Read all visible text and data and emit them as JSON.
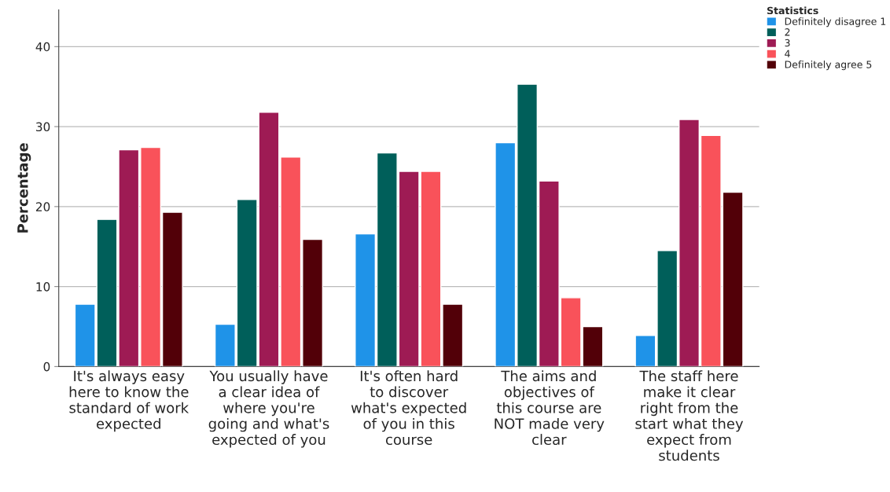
{
  "chart_data": {
    "type": "bar",
    "ylabel": "Percentage",
    "legend_title": "Statistics",
    "legend": "top right",
    "grid": "y",
    "categories": [
      "It's always easy here to know the standard of work expected",
      "You usually have a clear idea of where you're going and what's expected of you",
      "It's often hard to discover what's expected of you in this course",
      "The aims and objectives of this course are NOT made very clear",
      "The staff here make it clear right from the start what they expect from students"
    ],
    "series": [
      {
        "name": "Definitely disagree 1",
        "color": "#1f93e8",
        "values": [
          7.8,
          5.3,
          16.6,
          28.0,
          3.9
        ]
      },
      {
        "name": "2",
        "color": "#005f5a",
        "values": [
          18.4,
          20.9,
          26.7,
          35.3,
          14.5
        ]
      },
      {
        "name": "3",
        "color": "#9e1b54",
        "values": [
          27.1,
          31.8,
          24.4,
          23.2,
          30.9
        ]
      },
      {
        "name": "4",
        "color": "#f9525a",
        "values": [
          27.4,
          26.2,
          24.4,
          8.6,
          28.9
        ]
      },
      {
        "name": "Definitely agree 5",
        "color": "#520008",
        "values": [
          19.3,
          15.9,
          7.8,
          5.0,
          21.8
        ]
      }
    ],
    "ylim": [
      0,
      44.6
    ],
    "yticks": [
      0,
      10,
      20,
      30,
      40
    ]
  }
}
